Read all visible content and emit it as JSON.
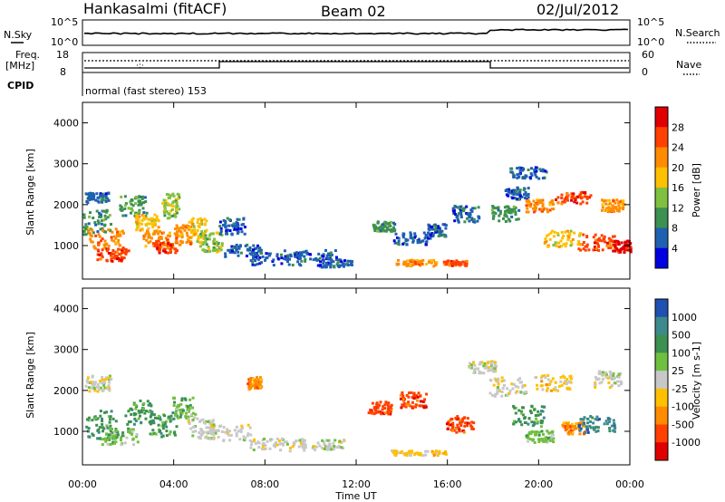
{
  "header": {
    "station": "Hankasalmi (fitACF)",
    "beam": "Beam 02",
    "date": "02/Jul/2012"
  },
  "top_panels": {
    "nsky_label": "N.Sky",
    "nsky_ticks": [
      "10^5",
      "10^0"
    ],
    "nsearch_label": "N.Search",
    "nsearch_ticks": [
      "10^5",
      "10^0"
    ],
    "freq_label_1": "Freq.",
    "freq_label_2": "[MHz]",
    "freq_ticks": [
      "18",
      "8"
    ],
    "nave_label": "Nave",
    "nave_ticks": [
      "60",
      "0"
    ],
    "cpid_label": "CPID",
    "cpid_text": "normal (fast stereo) 153"
  },
  "chart_data": [
    {
      "type": "heatmap",
      "quantity": "Power",
      "ylabel": "Slant Range [km]",
      "ylim": [
        180,
        4500
      ],
      "yticks": [
        1000,
        2000,
        3000,
        4000
      ],
      "xlim_hours": [
        0,
        24
      ],
      "colorbar": {
        "label": "Power [dB]",
        "ticks": [
          "28",
          "24",
          "20",
          "16",
          "12",
          "8",
          "4"
        ],
        "colors": [
          "#e00000",
          "#ff4000",
          "#ff8c00",
          "#ffc000",
          "#80c040",
          "#3c9050",
          "#2060b0",
          "#0000e0"
        ]
      }
    },
    {
      "type": "heatmap",
      "quantity": "Velocity",
      "ylabel": "Slant Range [km]",
      "ylim": [
        180,
        4500
      ],
      "yticks": [
        1000,
        2000,
        3000,
        4000
      ],
      "xlim_hours": [
        0,
        24
      ],
      "colorbar": {
        "label": "Velocity [m s-1]",
        "ticks": [
          "1000",
          "500",
          "100",
          "25",
          "-25",
          "-100",
          "-500",
          "-1000"
        ],
        "colors": [
          "#2050b0",
          "#3c8a8c",
          "#3c9050",
          "#70c040",
          "#c8c8c8",
          "#ffc000",
          "#ff8c00",
          "#ff4000",
          "#e00000"
        ]
      }
    }
  ],
  "xaxis": {
    "ticks": [
      "00:00",
      "04:00",
      "08:00",
      "12:00",
      "16:00",
      "20:00",
      "00:00"
    ],
    "label": "Time UT"
  }
}
